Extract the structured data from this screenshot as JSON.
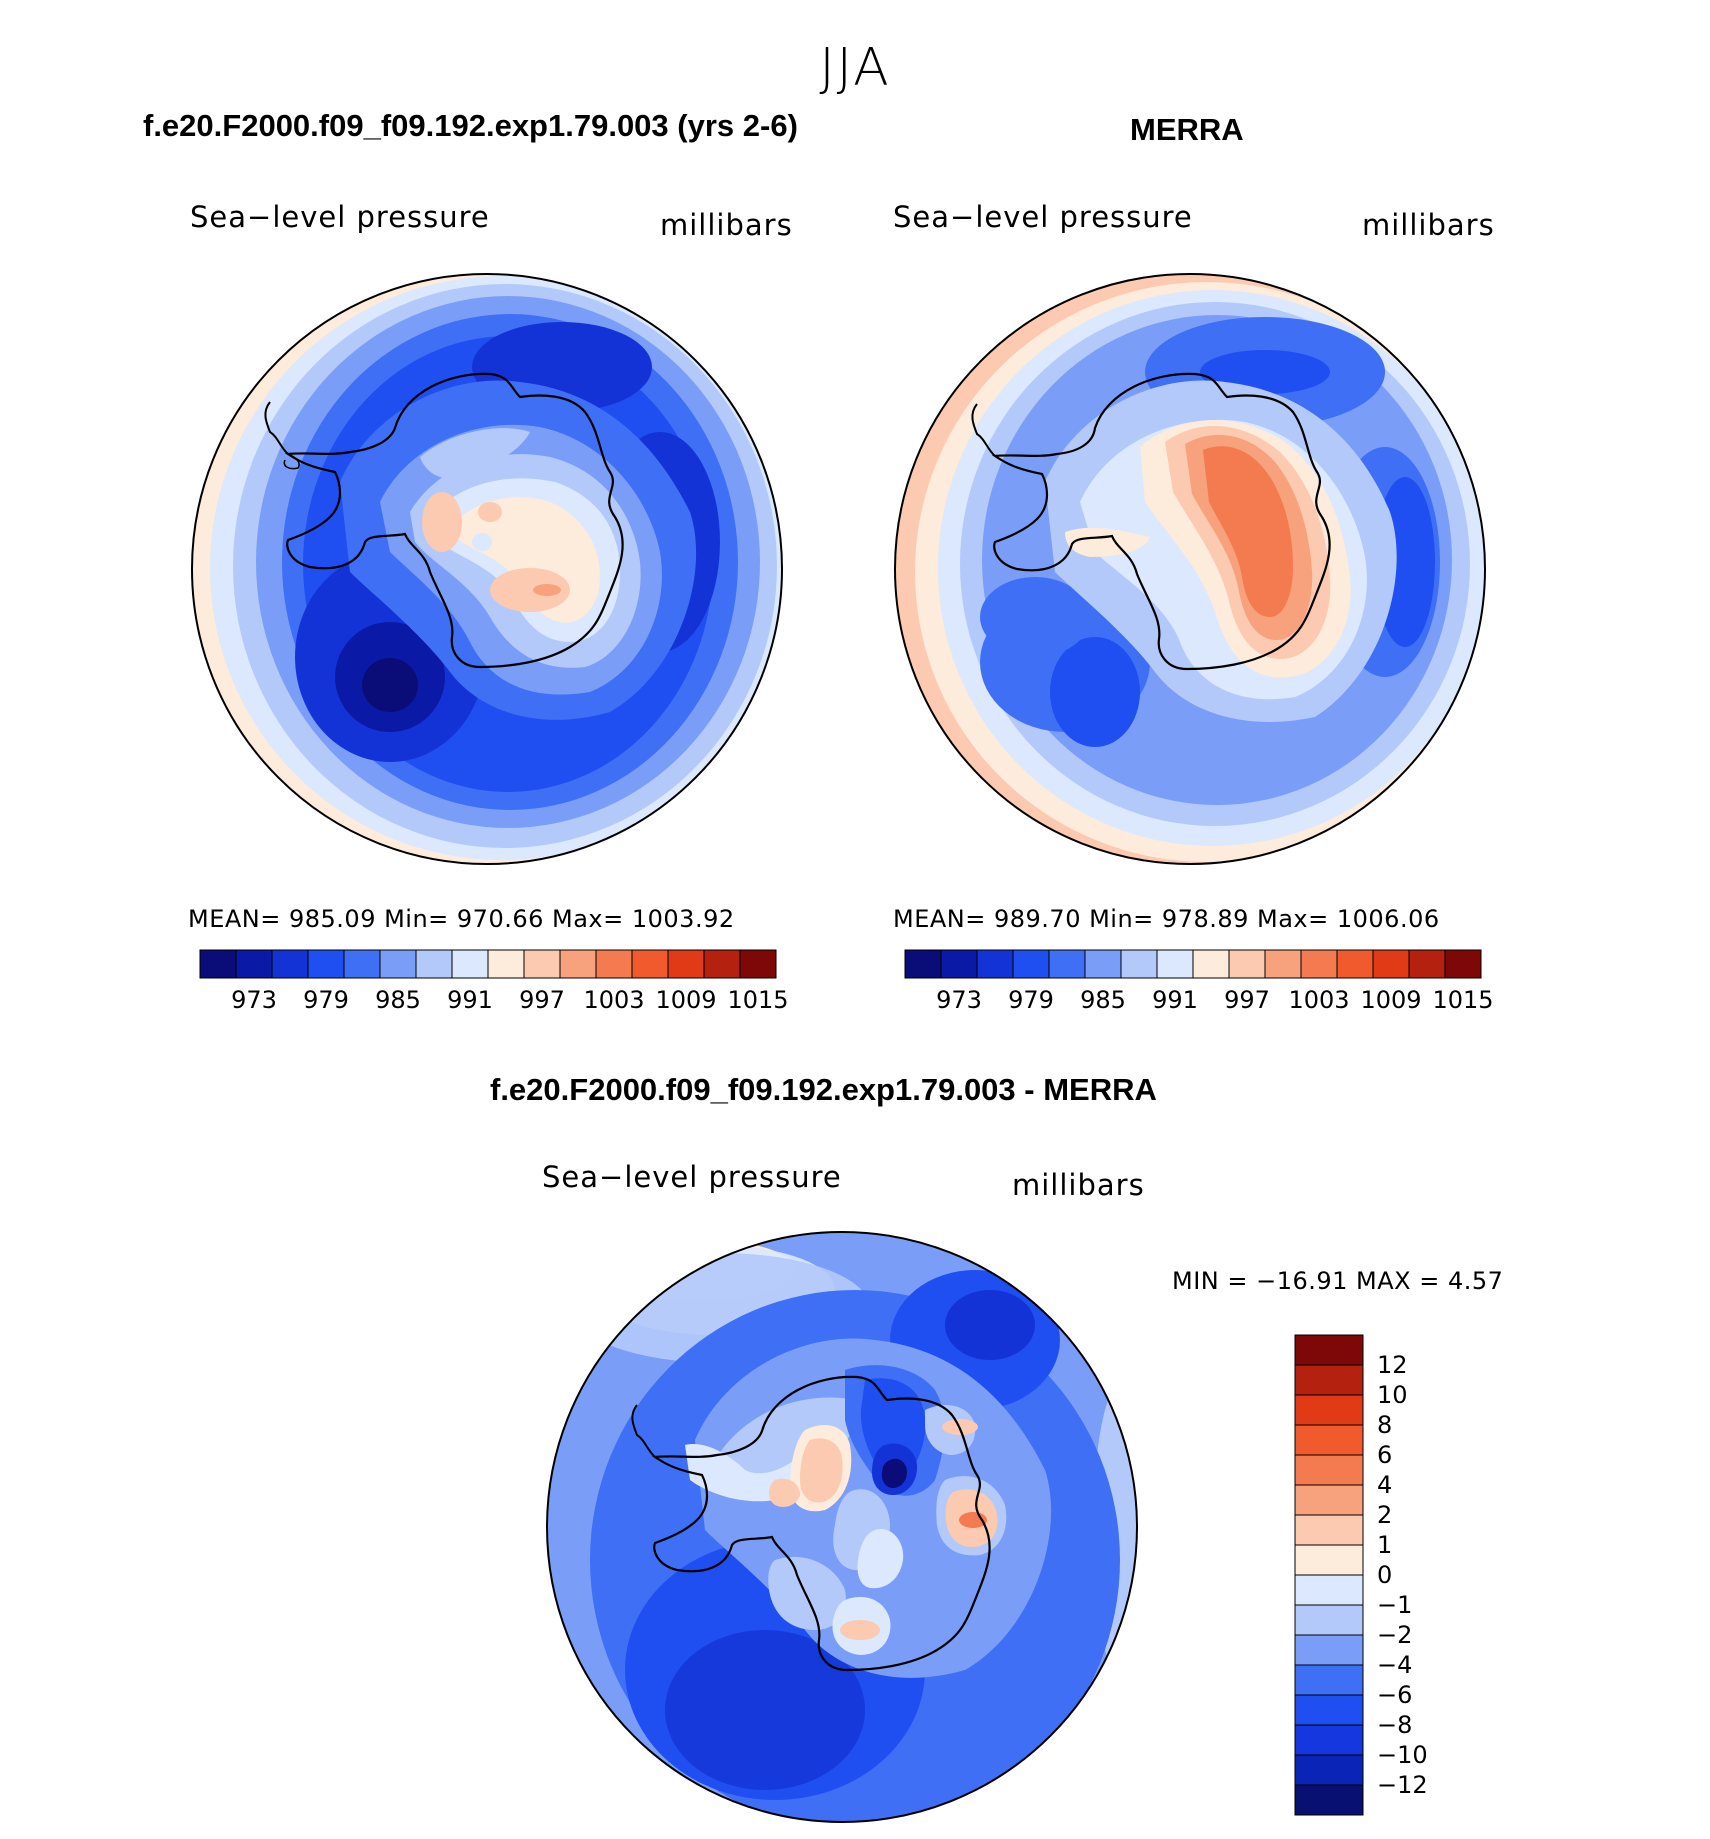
{
  "page_title": "JJA",
  "colors": {
    "abs_levels": [
      "#0a0d78",
      "#0b1aa6",
      "#1433d6",
      "#1f4ff0",
      "#3f6ff5",
      "#7a9ef7",
      "#b3c9fa",
      "#dbe8fd",
      "#fdebdc",
      "#fbcab0",
      "#f7a17d",
      "#f47a4f",
      "#f05a2d",
      "#e03a17",
      "#b4210f",
      "#7e0708"
    ],
    "diff_levels": [
      "#081072",
      "#0b24b8",
      "#1437e0",
      "#1f4ff0",
      "#3f6ff5",
      "#7a9ef7",
      "#b3c9fa",
      "#dbe8fd",
      "#fdebdc",
      "#fbcab0",
      "#f7a17d",
      "#f47a4f",
      "#f05a2d",
      "#e03a17",
      "#b4210f",
      "#7e0708"
    ]
  },
  "panels": [
    {
      "header": "f.e20.F2000.f09_f09.192.exp1.79.003 (yrs 2-6)",
      "variable": "Sea−level pressure",
      "units": "millibars",
      "stats": "MEAN=  985.09    Min=  970.66    Max=  1003.92",
      "colorbar_ticks": [
        "973",
        "979",
        "985",
        "991",
        "997",
        "1003",
        "1009",
        "1015"
      ]
    },
    {
      "header": "MERRA",
      "variable": "Sea−level pressure",
      "units": "millibars",
      "stats": "MEAN=  989.70    Min=  978.89    Max=  1006.06",
      "colorbar_ticks": [
        "973",
        "979",
        "985",
        "991",
        "997",
        "1003",
        "1009",
        "1015"
      ]
    }
  ],
  "difference": {
    "header": "f.e20.F2000.f09_f09.192.exp1.79.003 - MERRA",
    "variable": "Sea−level pressure",
    "units": "millibars",
    "stats": "MIN  =  −16.91  MAX  =     4.57",
    "colorbar_ticks": [
      "12",
      "10",
      "8",
      "6",
      "4",
      "2",
      "1",
      "0",
      "−1",
      "−2",
      "−4",
      "−6",
      "−8",
      "−10",
      "−12"
    ]
  }
}
